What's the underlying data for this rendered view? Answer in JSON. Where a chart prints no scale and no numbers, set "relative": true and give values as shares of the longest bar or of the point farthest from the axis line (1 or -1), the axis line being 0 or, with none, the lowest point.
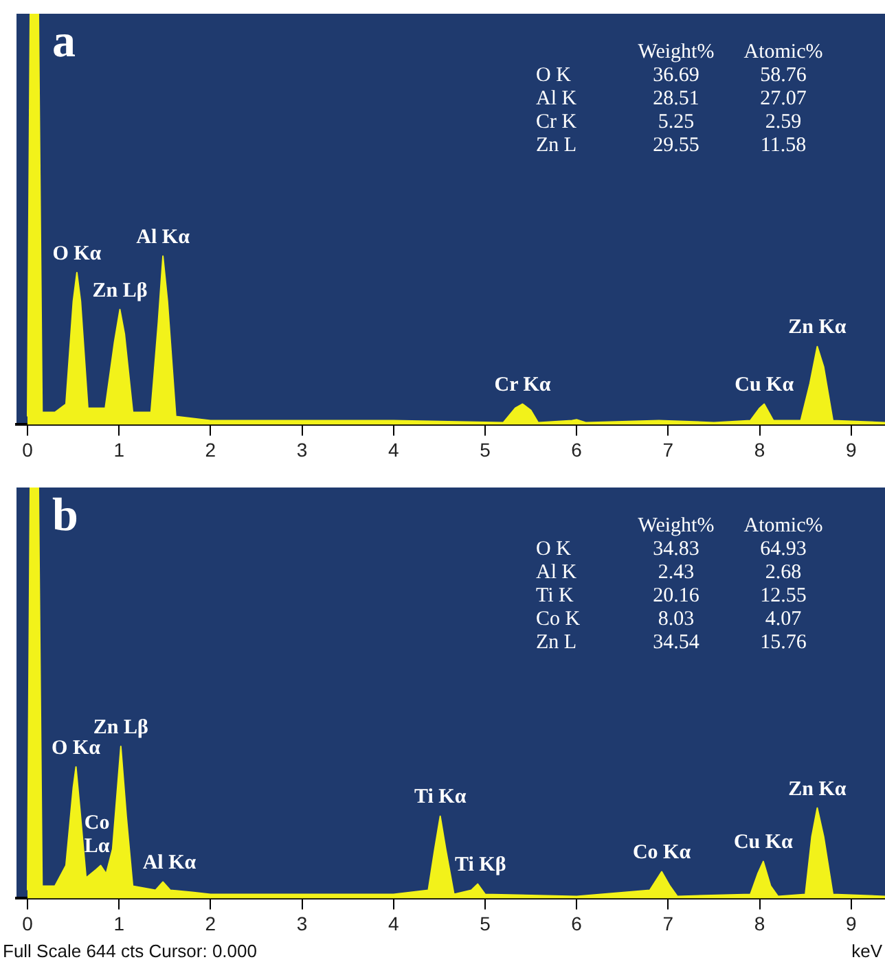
{
  "chart_data": [
    {
      "type": "area",
      "title": "a",
      "relative": true,
      "color": "#f2f21a",
      "xlim": [
        -0.12,
        9.37
      ],
      "xticks": [
        0,
        1,
        2,
        3,
        4,
        5,
        6,
        7,
        8,
        9
      ],
      "x": [
        0,
        0.03,
        0.12,
        0.16,
        0.3,
        0.42,
        0.5,
        0.54,
        0.58,
        0.66,
        0.85,
        0.95,
        1.01,
        1.06,
        1.15,
        1.35,
        1.43,
        1.48,
        1.53,
        1.62,
        2,
        3,
        4,
        5.2,
        5.33,
        5.41,
        5.5,
        5.58,
        5.95,
        6,
        6.1,
        6.9,
        7.5,
        7.9,
        8.0,
        8.05,
        8.15,
        8.45,
        8.55,
        8.63,
        8.7,
        8.8,
        9.37
      ],
      "values": [
        0.02,
        1,
        1,
        0.03,
        0.03,
        0.05,
        0.3,
        0.37,
        0.3,
        0.04,
        0.04,
        0.2,
        0.28,
        0.22,
        0.03,
        0.03,
        0.25,
        0.41,
        0.3,
        0.02,
        0.01,
        0.01,
        0.01,
        0.005,
        0.04,
        0.05,
        0.035,
        0.005,
        0.01,
        0.012,
        0.005,
        0.01,
        0.005,
        0.01,
        0.04,
        0.05,
        0.01,
        0.01,
        0.1,
        0.19,
        0.14,
        0.01,
        0.005
      ],
      "annotations": [
        "Weight%",
        "Atomic%",
        "O K",
        "36.69",
        "58.76",
        "Al K",
        "28.51",
        "27.07",
        "Cr K",
        "5.25",
        "2.59",
        "Zn L",
        "29.55",
        "11.58",
        {
          "text": "O Kα",
          "x": 0.54,
          "y": 0.37
        },
        {
          "text": "Zn Lβ",
          "x": 1.01,
          "y": 0.28
        },
        {
          "text": "Al Kα",
          "x": 1.48,
          "y": 0.41
        },
        {
          "text": "Cr Kα",
          "x": 5.41,
          "y": 0.05
        },
        {
          "text": "Cu Kα",
          "x": 8.05,
          "y": 0.05
        },
        {
          "text": "Zn Kα",
          "x": 8.63,
          "y": 0.19
        }
      ]
    },
    {
      "type": "area",
      "title": "b",
      "relative": true,
      "color": "#f2f21a",
      "xlim": [
        -0.12,
        9.37
      ],
      "xticks": [
        0,
        1,
        2,
        3,
        4,
        5,
        6,
        7,
        8,
        9
      ],
      "xlabel": "keV",
      "x": [
        0,
        0.03,
        0.12,
        0.16,
        0.3,
        0.42,
        0.5,
        0.53,
        0.58,
        0.64,
        0.75,
        0.8,
        0.86,
        0.93,
        1.02,
        1.08,
        1.15,
        1.4,
        1.48,
        1.56,
        1.8,
        2,
        3,
        4,
        4.38,
        4.45,
        4.51,
        4.57,
        4.66,
        4.85,
        4.92,
        5.0,
        6,
        6.8,
        6.93,
        7.02,
        7.1,
        7.9,
        7.98,
        8.04,
        8.12,
        8.2,
        8.5,
        8.57,
        8.63,
        8.7,
        8.8,
        9.37
      ],
      "values": [
        0.02,
        1,
        1,
        0.03,
        0.03,
        0.08,
        0.27,
        0.32,
        0.2,
        0.05,
        0.07,
        0.08,
        0.06,
        0.12,
        0.37,
        0.2,
        0.03,
        0.02,
        0.04,
        0.02,
        0.015,
        0.01,
        0.01,
        0.01,
        0.02,
        0.12,
        0.2,
        0.12,
        0.01,
        0.02,
        0.035,
        0.01,
        0.005,
        0.02,
        0.065,
        0.03,
        0.005,
        0.01,
        0.06,
        0.09,
        0.03,
        0.005,
        0.01,
        0.15,
        0.22,
        0.15,
        0.01,
        0.005
      ],
      "annotations": [
        "Weight%",
        "Atomic%",
        "O K",
        "34.83",
        "64.93",
        "Al K",
        "2.43",
        "2.68",
        "Ti K",
        "20.16",
        "12.55",
        "Co K",
        "8.03",
        "4.07",
        "Zn L",
        "34.54",
        "15.76",
        "Full Scale 644 cts Cursor: 0.000",
        {
          "text": "O Kα",
          "x": 0.53,
          "y": 0.32
        },
        {
          "text": "Zn Lβ",
          "x": 1.02,
          "y": 0.37
        },
        {
          "text": "Co\nLα",
          "x": 0.76,
          "y": 0.08
        },
        {
          "text": "Al Kα",
          "x": 1.55,
          "y": 0.04
        },
        {
          "text": "Ti Kα",
          "x": 4.51,
          "y": 0.2
        },
        {
          "text": "Ti Kβ",
          "x": 4.95,
          "y": 0.035
        },
        {
          "text": "Co Kα",
          "x": 6.93,
          "y": 0.065
        },
        {
          "text": "Cu Kα",
          "x": 8.04,
          "y": 0.09
        },
        {
          "text": "Zn Kα",
          "x": 8.63,
          "y": 0.22
        }
      ]
    }
  ]
}
